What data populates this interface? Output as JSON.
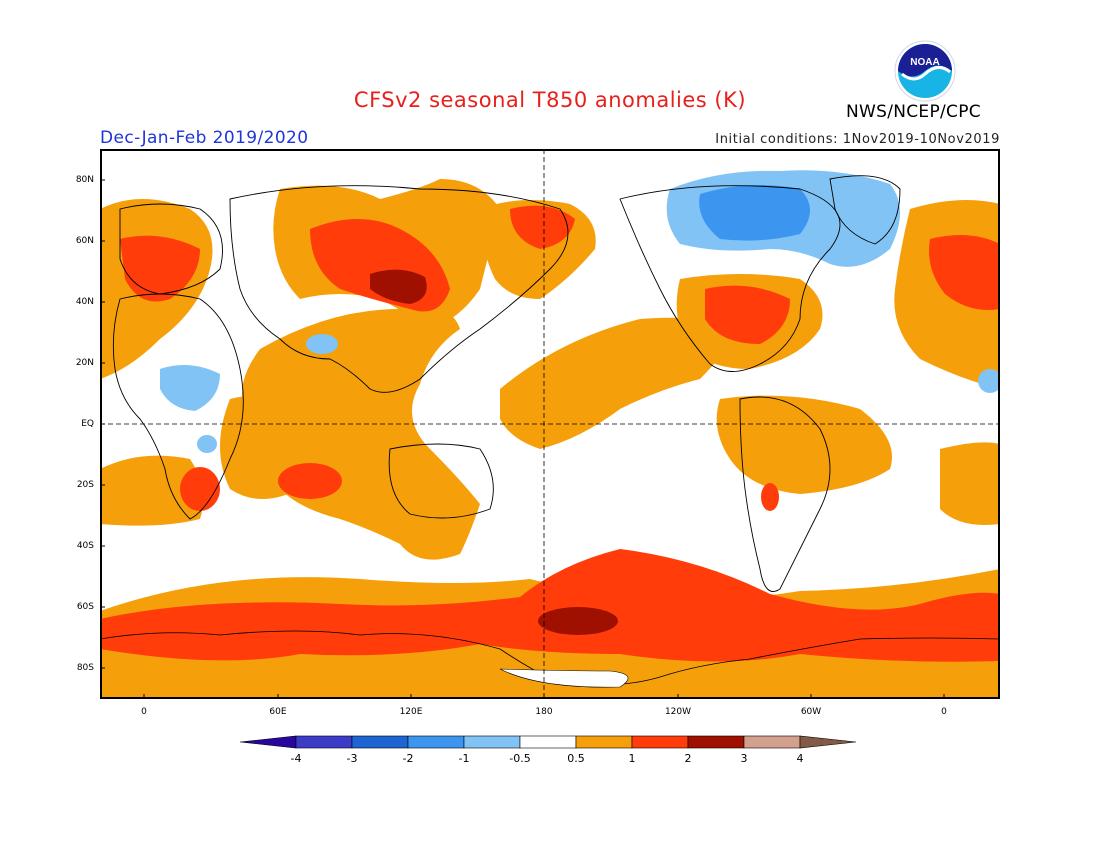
{
  "header": {
    "title": "CFSv2 seasonal T850 anomalies (K)",
    "agency": "NWS/NCEP/CPC",
    "logo_text": "NOAA",
    "season": "Dec-Jan-Feb 2019/2020",
    "initial_conditions": "Initial conditions: 1Nov2019-10Nov2019"
  },
  "axes": {
    "lat_labels": [
      "80N",
      "60N",
      "40N",
      "20N",
      "EQ",
      "20S",
      "40S",
      "60S",
      "80S"
    ],
    "lon_labels": [
      "0",
      "60E",
      "120E",
      "180",
      "120W",
      "60W",
      "0"
    ]
  },
  "colorbar": {
    "labels": [
      "-4",
      "-3",
      "-2",
      "-1",
      "-0.5",
      "0.5",
      "1",
      "2",
      "3",
      "4"
    ],
    "colors": [
      "#2a06a0",
      "#3c3cc8",
      "#1e64d2",
      "#3c96f0",
      "#82c3f5",
      "#ffffff",
      "#f5a00a",
      "#ff3c0a",
      "#a01000",
      "#d2a08c",
      "#825a46"
    ]
  }
}
